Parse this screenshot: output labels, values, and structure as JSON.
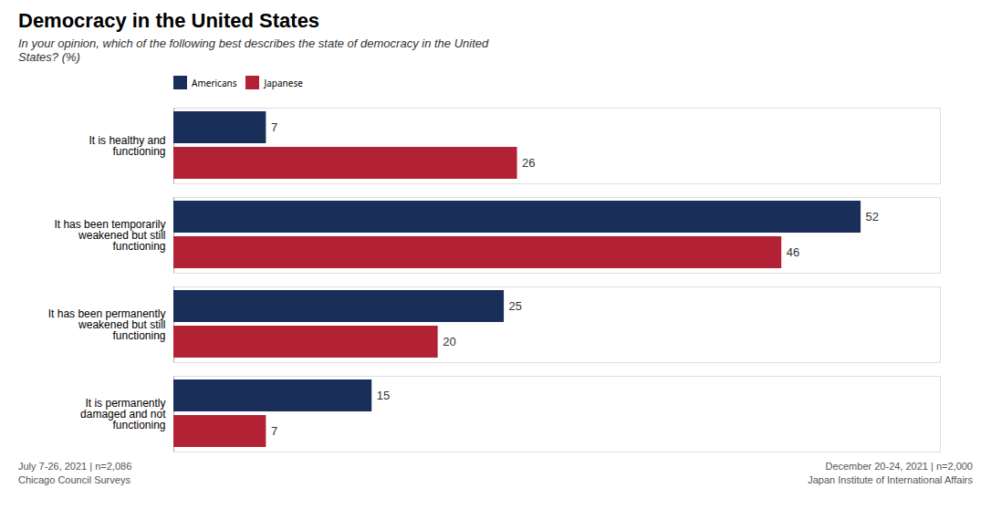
{
  "chart_data": {
    "type": "bar",
    "orientation": "horizontal",
    "title": "Democracy in the United States",
    "subtitle": "In your opinion, which of the following best describes the state of democracy in the United\nStates? (%)",
    "categories": [
      "It is healthy and\nfunctioning",
      "It has been temporarily\nweakened but still\nfunctioning",
      "It has been permanently\nweakened but still\nfunctioning",
      "It is permanently\ndamaged and not\nfunctioning"
    ],
    "series": [
      {
        "name": "Americans",
        "color": "#1a2e5a",
        "values": [
          7,
          52,
          25,
          15
        ]
      },
      {
        "name": "Japanese",
        "color": "#b22234",
        "values": [
          26,
          46,
          20,
          7
        ]
      }
    ],
    "xlim": [
      0,
      58
    ],
    "tick_labels": "y",
    "data_labels": true,
    "grid": false,
    "legend": "top",
    "annotations": [
      "July 7-26, 2021 | n=2,086",
      "Chicago Council Surveys",
      "December 20-24, 2021 | n=2,000",
      "Japan Institute of International Affairs"
    ]
  }
}
